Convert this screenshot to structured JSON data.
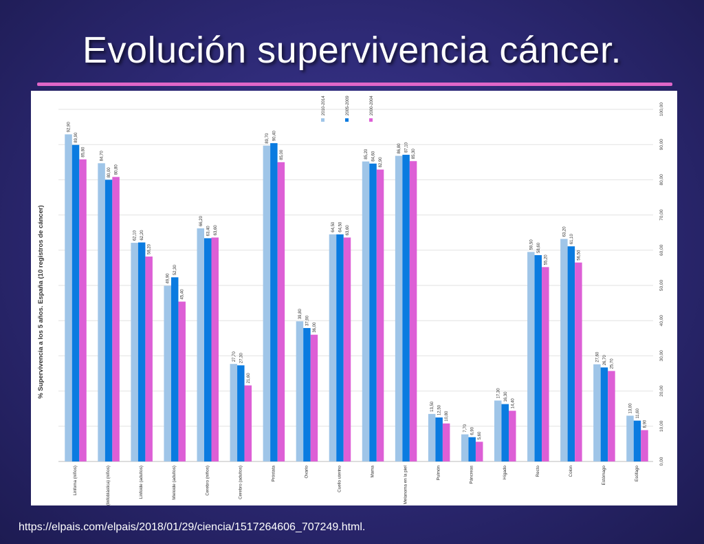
{
  "slide": {
    "title": "Evolución supervivencia cáncer.",
    "source": "https://elpais.com/elpais/2018/01/29/ciencia/1517264606_707249.html."
  },
  "colors": {
    "background": "#2c2872",
    "title_rule": "#e066c8",
    "series": [
      "#9fc5e8",
      "#0a7be0",
      "#dd5fd6"
    ]
  },
  "chart_data": {
    "type": "bar",
    "title": "",
    "ylabel": "% Supervivencia a los 5 años. España (10 registros de cáncer)",
    "xlabel": "",
    "ylim": [
      0,
      100
    ],
    "yticks": [
      "0,00",
      "10,00",
      "20,00",
      "30,00",
      "40,00",
      "50,00",
      "60,00",
      "70,00",
      "80,00",
      "90,00",
      "100,00"
    ],
    "y_axis_side": "right",
    "grid": true,
    "legend_position": "top-center",
    "categories": [
      "Linfoma (niños)",
      "Leucemia aguda (linfoblástica) (niños)",
      "Linfoide (adultos)",
      "Mieloide (adultos)",
      "Cerebro (niños)",
      "Cerebro (adultos)",
      "Próstata",
      "Ovario",
      "Cuello uterino",
      "Mama",
      "Melanoma en la piel",
      "Pulmón",
      "Páncreas",
      "Hígado",
      "Recto",
      "Colon",
      "Estómago",
      "Esófago"
    ],
    "series": [
      {
        "name": "2010-2014",
        "values": [
          92.9,
          84.7,
          62.1,
          49.9,
          66.2,
          27.7,
          89.7,
          39.8,
          64.5,
          85.2,
          86.8,
          13.5,
          7.7,
          17.3,
          59.5,
          63.2,
          27.6,
          13.0
        ],
        "labels": [
          "92,90",
          "84,70",
          "62,10",
          "49,90",
          "66,20",
          "27,70",
          "89,70",
          "39,80",
          "64,50",
          "85,20",
          "86,80",
          "13,50",
          "7,70",
          "17,30",
          "59,50",
          "63,20",
          "27,60",
          "13,00"
        ]
      },
      {
        "name": "2005-2009",
        "values": [
          89.9,
          80.0,
          62.2,
          52.3,
          63.4,
          27.3,
          90.4,
          37.9,
          64.5,
          84.6,
          87.1,
          12.5,
          6.9,
          16.3,
          58.6,
          61.1,
          26.7,
          11.6
        ],
        "labels": [
          "89,90",
          "80,00",
          "62,20",
          "52,30",
          "63,40",
          "27,30",
          "90,40",
          "37,90",
          "64,50",
          "84,60",
          "87,10",
          "12,50",
          "6,90",
          "16,30",
          "58,60",
          "61,10",
          "26,70",
          "11,60"
        ]
      },
      {
        "name": "2000-2004",
        "values": [
          85.8,
          80.8,
          58.2,
          45.4,
          63.6,
          21.6,
          85.0,
          36.0,
          63.6,
          82.9,
          85.3,
          10.8,
          5.6,
          14.4,
          55.2,
          56.5,
          25.7,
          8.9
        ],
        "labels": [
          "85,80",
          "80,80",
          "58,20",
          "45,40",
          "63,60",
          "21,60",
          "85,00",
          "36,00",
          "63,60",
          "82,90",
          "85,30",
          "10,80",
          "5,60",
          "14,40",
          "55,20",
          "56,50",
          "25,70",
          "8,90"
        ]
      }
    ]
  }
}
